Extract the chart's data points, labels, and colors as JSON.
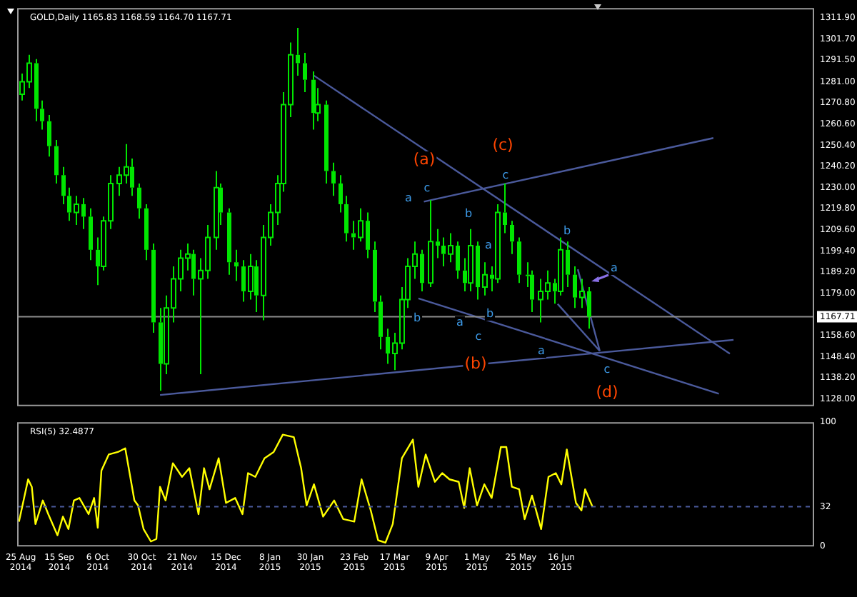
{
  "chart_data": [
    {
      "type": "candlestick",
      "title": "GOLD,Daily 1165.83 1168.59 1164.70 1167.71",
      "color": "#00e600",
      "x": [
        "2014-08-25",
        "2014-08-29",
        "2014-09-02",
        "2014-09-05",
        "2014-09-09",
        "2014-09-13",
        "2014-09-17",
        "2014-09-20",
        "2014-09-24",
        "2014-09-28",
        "2014-10-02",
        "2014-10-06",
        "2014-10-09",
        "2014-10-13",
        "2014-10-17",
        "2014-10-21",
        "2014-10-24",
        "2014-10-28",
        "2014-11-01",
        "2014-11-05",
        "2014-11-09",
        "2014-11-12",
        "2014-11-16",
        "2014-11-20",
        "2014-11-24",
        "2014-11-27",
        "2014-12-01",
        "2014-12-05",
        "2014-12-09",
        "2014-12-12",
        "2014-12-16",
        "2014-12-20",
        "2014-12-24",
        "2014-12-28",
        "2014-12-31",
        "2015-01-04",
        "2015-01-08",
        "2015-01-12",
        "2015-01-15",
        "2015-01-19",
        "2015-01-23",
        "2015-01-27",
        "2015-01-31",
        "2015-02-03",
        "2015-02-07",
        "2015-02-11",
        "2015-02-15",
        "2015-02-18",
        "2015-02-22",
        "2015-02-26",
        "2015-03-02",
        "2015-03-06",
        "2015-03-09",
        "2015-03-13",
        "2015-03-17",
        "2015-03-21",
        "2015-03-24",
        "2015-03-28",
        "2015-04-01",
        "2015-04-05",
        "2015-04-09",
        "2015-04-12",
        "2015-04-16",
        "2015-04-20",
        "2015-04-24",
        "2015-04-27",
        "2015-05-01",
        "2015-05-05",
        "2015-05-09",
        "2015-05-12",
        "2015-05-16",
        "2015-05-20",
        "2015-05-24",
        "2015-05-28",
        "2015-05-31",
        "2015-06-04",
        "2015-06-08",
        "2015-06-12",
        "2015-06-15",
        "2015-06-19",
        "2015-06-23",
        "2015-06-27",
        "2015-07-01"
      ],
      "ohlc": [
        [
          1275,
          1285,
          1272,
          1281
        ],
        [
          1281,
          1294,
          1278,
          1290
        ],
        [
          1290,
          1292,
          1262,
          1268
        ],
        [
          1268,
          1272,
          1258,
          1262
        ],
        [
          1262,
          1265,
          1245,
          1250
        ],
        [
          1250,
          1253,
          1232,
          1236
        ],
        [
          1236,
          1240,
          1222,
          1226
        ],
        [
          1226,
          1230,
          1214,
          1218
        ],
        [
          1218,
          1226,
          1212,
          1222
        ],
        [
          1222,
          1225,
          1210,
          1216
        ],
        [
          1216,
          1220,
          1195,
          1200
        ],
        [
          1200,
          1206,
          1183,
          1192
        ],
        [
          1192,
          1216,
          1190,
          1214
        ],
        [
          1214,
          1236,
          1210,
          1232
        ],
        [
          1232,
          1240,
          1226,
          1236
        ],
        [
          1236,
          1251,
          1232,
          1240
        ],
        [
          1240,
          1244,
          1226,
          1230
        ],
        [
          1230,
          1232,
          1215,
          1220
        ],
        [
          1220,
          1222,
          1195,
          1200
        ],
        [
          1200,
          1203,
          1160,
          1165
        ],
        [
          1165,
          1172,
          1132,
          1145
        ],
        [
          1145,
          1178,
          1140,
          1172
        ],
        [
          1172,
          1192,
          1165,
          1186
        ],
        [
          1186,
          1200,
          1180,
          1196
        ],
        [
          1196,
          1203,
          1190,
          1198
        ],
        [
          1198,
          1200,
          1178,
          1186
        ],
        [
          1186,
          1196,
          1140,
          1190
        ],
        [
          1190,
          1212,
          1186,
          1206
        ],
        [
          1206,
          1238,
          1200,
          1230
        ],
        [
          1230,
          1232,
          1212,
          1218
        ],
        [
          1218,
          1220,
          1188,
          1194
        ],
        [
          1194,
          1200,
          1185,
          1192
        ],
        [
          1192,
          1195,
          1175,
          1180
        ],
        [
          1180,
          1198,
          1176,
          1192
        ],
        [
          1192,
          1195,
          1170,
          1178
        ],
        [
          1178,
          1212,
          1166,
          1206
        ],
        [
          1206,
          1222,
          1202,
          1218
        ],
        [
          1218,
          1236,
          1212,
          1232
        ],
        [
          1232,
          1276,
          1228,
          1270
        ],
        [
          1270,
          1300,
          1264,
          1294
        ],
        [
          1294,
          1307,
          1284,
          1290
        ],
        [
          1290,
          1295,
          1276,
          1282
        ],
        [
          1282,
          1286,
          1258,
          1266
        ],
        [
          1266,
          1278,
          1262,
          1270
        ],
        [
          1270,
          1272,
          1232,
          1238
        ],
        [
          1238,
          1242,
          1226,
          1232
        ],
        [
          1232,
          1236,
          1218,
          1222
        ],
        [
          1222,
          1226,
          1204,
          1208
        ],
        [
          1208,
          1214,
          1200,
          1206
        ],
        [
          1206,
          1220,
          1204,
          1214
        ],
        [
          1214,
          1218,
          1196,
          1200
        ],
        [
          1200,
          1204,
          1170,
          1175
        ],
        [
          1175,
          1178,
          1152,
          1158
        ],
        [
          1158,
          1162,
          1145,
          1150
        ],
        [
          1150,
          1160,
          1142,
          1155
        ],
        [
          1155,
          1182,
          1152,
          1176
        ],
        [
          1176,
          1196,
          1172,
          1192
        ],
        [
          1192,
          1204,
          1186,
          1198
        ],
        [
          1198,
          1200,
          1180,
          1184
        ],
        [
          1184,
          1224,
          1182,
          1204
        ],
        [
          1204,
          1210,
          1196,
          1202
        ],
        [
          1202,
          1206,
          1192,
          1198
        ],
        [
          1198,
          1208,
          1194,
          1202
        ],
        [
          1202,
          1204,
          1186,
          1190
        ],
        [
          1190,
          1196,
          1180,
          1184
        ],
        [
          1184,
          1210,
          1180,
          1202
        ],
        [
          1202,
          1204,
          1176,
          1182
        ],
        [
          1182,
          1194,
          1178,
          1188
        ],
        [
          1188,
          1192,
          1180,
          1186
        ],
        [
          1186,
          1222,
          1184,
          1218
        ],
        [
          1218,
          1232,
          1208,
          1212
        ],
        [
          1212,
          1214,
          1198,
          1204
        ],
        [
          1204,
          1206,
          1184,
          1188
        ],
        [
          1188,
          1194,
          1182,
          1188
        ],
        [
          1188,
          1190,
          1170,
          1176
        ],
        [
          1176,
          1186,
          1165,
          1180
        ],
        [
          1180,
          1190,
          1176,
          1184
        ],
        [
          1184,
          1186,
          1174,
          1180
        ],
        [
          1180,
          1206,
          1178,
          1200
        ],
        [
          1200,
          1204,
          1182,
          1188
        ],
        [
          1188,
          1192,
          1172,
          1177
        ],
        [
          1177,
          1186,
          1172,
          1180
        ],
        [
          1180,
          1182,
          1162,
          1167.71
        ]
      ],
      "series": [
        {
          "type": "line",
          "color": "#4b5a9c",
          "x": [
            "2015-02-01",
            "2015-09-16"
          ],
          "values": [
            1284,
            1149.9
          ]
        },
        {
          "type": "line",
          "color": "#4b5a9c",
          "x": [
            "2015-04-02",
            "2015-09-07"
          ],
          "values": [
            1223.2,
            1253.9
          ]
        },
        {
          "type": "line",
          "color": "#4b5a9c",
          "x": [
            "2014-11-09",
            "2015-09-18"
          ],
          "values": [
            1130,
            1156.6
          ]
        },
        {
          "type": "line",
          "color": "#4b5a9c",
          "x": [
            "2015-03-30",
            "2015-09-10"
          ],
          "values": [
            1176.6,
            1130.6
          ]
        },
        {
          "type": "line",
          "color": "#4b5a9c",
          "x": [
            "2015-06-25",
            "2015-07-07"
          ],
          "values": [
            1190.6,
            1151.2
          ]
        },
        {
          "type": "line",
          "color": "#4b5a9c",
          "x": [
            "2015-06-14",
            "2015-07-07"
          ],
          "values": [
            1173.9,
            1151.2
          ]
        }
      ],
      "xlim": [
        "2014-08-23",
        "2015-11-01"
      ],
      "ylim": [
        1124.6,
        1316.6
      ],
      "yticks": [
        {
          "value": 1128,
          "label": "1128.00"
        },
        {
          "value": 1138.2,
          "label": "1138.20"
        },
        {
          "value": 1148.4,
          "label": "1148.40"
        },
        {
          "value": 1158.6,
          "label": "1158.60"
        },
        {
          "value": 1179,
          "label": "1179.00"
        },
        {
          "value": 1189.2,
          "label": "1189.20"
        },
        {
          "value": 1199.4,
          "label": "1199.40"
        },
        {
          "value": 1209.6,
          "label": "1209.60"
        },
        {
          "value": 1219.8,
          "label": "1219.80"
        },
        {
          "value": 1230,
          "label": "1230.00"
        },
        {
          "value": 1240.2,
          "label": "1240.20"
        },
        {
          "value": 1250.4,
          "label": "1250.40"
        },
        {
          "value": 1260.6,
          "label": "1260.60"
        },
        {
          "value": 1270.8,
          "label": "1270.80"
        },
        {
          "value": 1281,
          "label": "1281.00"
        },
        {
          "value": 1291.5,
          "label": "1291.50"
        },
        {
          "value": 1301.7,
          "label": "1301.70"
        },
        {
          "value": 1311.9,
          "label": "1311.90"
        }
      ],
      "tick_labels": "y",
      "ref_lines": [
        {
          "axis": "y",
          "value": 1167.71,
          "label": "1167.71",
          "color": "#8c8c8c"
        }
      ],
      "annotations": [
        "(a)",
        "(c)",
        "(b)",
        "(d)",
        "a",
        "c",
        "b",
        "b",
        "a",
        "a",
        "b",
        "c",
        "c",
        "b",
        "a",
        "a",
        "c"
      ]
    },
    {
      "type": "line",
      "title": "RSI(5) 32.4877",
      "color": "#ffff00",
      "x": [
        "2014-08-24",
        "2014-08-29",
        "2014-08-31",
        "2014-09-02",
        "2014-09-06",
        "2014-09-09",
        "2014-09-14",
        "2014-09-17",
        "2014-09-20",
        "2014-09-23",
        "2014-09-26",
        "2014-10-01",
        "2014-10-04",
        "2014-10-06",
        "2014-10-08",
        "2014-10-12",
        "2014-10-17",
        "2014-10-21",
        "2014-10-26",
        "2014-10-28",
        "2014-10-31",
        "2014-11-04",
        "2014-11-07",
        "2014-11-09",
        "2014-11-12",
        "2014-11-16",
        "2014-11-21",
        "2014-11-25",
        "2014-11-30",
        "2014-12-03",
        "2014-12-06",
        "2014-12-11",
        "2014-12-15",
        "2014-12-20",
        "2014-12-24",
        "2014-12-27",
        "2014-12-31",
        "2015-01-05",
        "2015-01-10",
        "2015-01-15",
        "2015-01-21",
        "2015-01-25",
        "2015-01-28",
        "2015-02-01",
        "2015-02-06",
        "2015-02-12",
        "2015-02-17",
        "2015-02-23",
        "2015-02-27",
        "2015-03-04",
        "2015-03-08",
        "2015-03-12",
        "2015-03-16",
        "2015-03-21",
        "2015-03-27",
        "2015-03-30",
        "2015-04-03",
        "2015-04-08",
        "2015-04-12",
        "2015-04-16",
        "2015-04-21",
        "2015-04-24",
        "2015-04-27",
        "2015-05-01",
        "2015-05-05",
        "2015-05-09",
        "2015-05-14",
        "2015-05-17",
        "2015-05-20",
        "2015-05-24",
        "2015-05-27",
        "2015-05-31",
        "2015-06-05",
        "2015-06-09",
        "2015-06-13",
        "2015-06-16",
        "2015-06-19",
        "2015-06-24",
        "2015-06-27",
        "2015-06-29",
        "2015-07-03"
      ],
      "values": [
        20,
        54,
        48,
        18,
        37,
        26,
        9,
        24,
        14,
        37,
        39,
        26,
        39,
        15,
        61,
        74,
        76,
        79,
        37,
        33,
        14,
        4,
        6,
        48,
        37,
        67,
        56,
        63,
        26,
        63,
        46,
        71,
        35,
        39,
        26,
        59,
        56,
        71,
        76,
        90,
        88,
        63,
        33,
        50,
        24,
        37,
        22,
        20,
        54,
        29,
        5,
        3,
        18,
        71,
        86,
        48,
        74,
        52,
        59,
        54,
        52,
        31,
        63,
        33,
        50,
        39,
        80,
        80,
        48,
        46,
        22,
        41,
        14,
        56,
        59,
        50,
        78,
        35,
        29,
        46,
        32
      ],
      "xlim": [
        "2014-08-23",
        "2015-11-01"
      ],
      "xticks": [
        {
          "value": "2014-08-25",
          "label": "25 Aug 2014"
        },
        {
          "value": "2014-09-15",
          "label": "15 Sep 2014"
        },
        {
          "value": "2014-10-06",
          "label": "6 Oct 2014"
        },
        {
          "value": "2014-10-30",
          "label": "30 Oct 2014"
        },
        {
          "value": "2014-11-21",
          "label": "21 Nov 2014"
        },
        {
          "value": "2014-12-15",
          "label": "15 Dec 2014"
        },
        {
          "value": "2015-01-08",
          "label": "8 Jan 2015"
        },
        {
          "value": "2015-01-30",
          "label": "30 Jan 2015"
        },
        {
          "value": "2015-02-23",
          "label": "23 Feb 2015"
        },
        {
          "value": "2015-03-17",
          "label": "17 Mar 2015"
        },
        {
          "value": "2015-04-09",
          "label": "9 Apr 2015"
        },
        {
          "value": "2015-05-01",
          "label": "1 May 2015"
        },
        {
          "value": "2015-05-25",
          "label": "25 May 2015"
        },
        {
          "value": "2015-06-16",
          "label": "16 Jun 2015"
        }
      ],
      "ylim": [
        0,
        100
      ],
      "yticks": [
        0,
        32,
        100
      ],
      "ref_lines": [
        {
          "axis": "y",
          "value": 32,
          "color": "#4b5a9c",
          "line_style": "dashed"
        }
      ]
    }
  ]
}
